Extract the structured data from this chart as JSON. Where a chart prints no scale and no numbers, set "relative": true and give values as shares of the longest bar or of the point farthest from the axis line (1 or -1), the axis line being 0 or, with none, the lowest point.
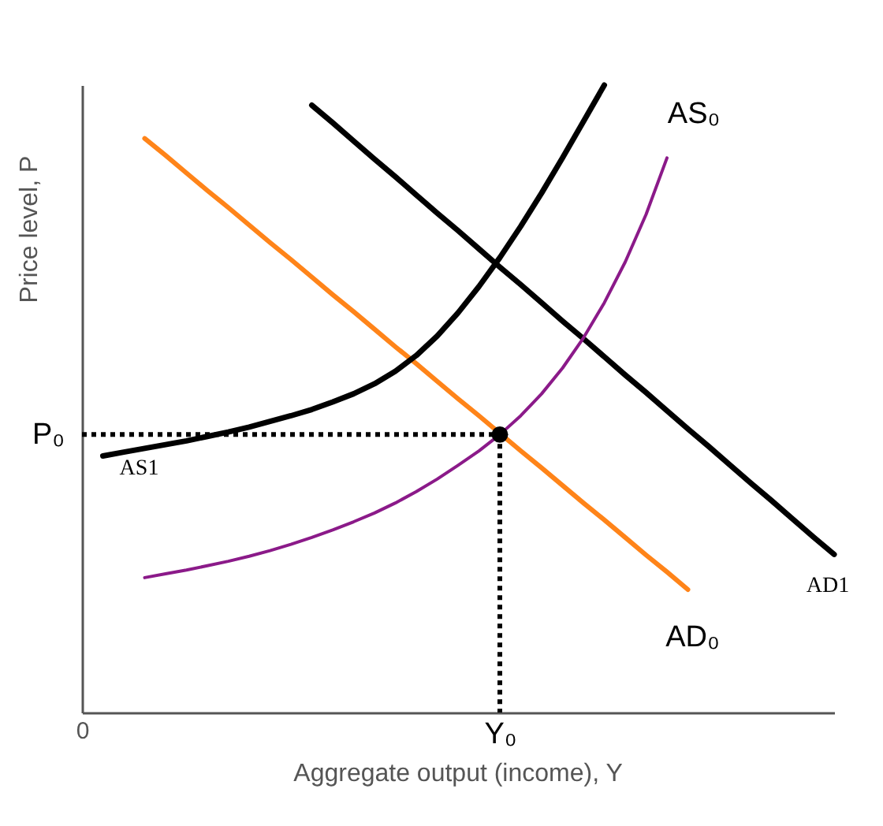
{
  "chart_data": {
    "type": "line",
    "relative": true,
    "xlabel": "Aggregate output (income), Y",
    "ylabel": "Price level, P",
    "grid": false,
    "categories": [
      "0",
      null,
      null,
      null,
      null,
      null,
      null,
      null,
      null,
      null,
      null,
      null,
      null,
      null,
      null,
      null,
      null,
      null,
      null,
      null,
      "Y₀",
      null,
      null,
      null,
      null,
      null,
      null,
      null,
      null,
      null,
      null,
      null,
      null,
      null,
      null,
      null,
      null
    ],
    "annotations": [
      "P₀"
    ],
    "series": [
      {
        "name": "AD₀",
        "color": "#ff8419",
        "values": [
          null,
          null,
          null,
          0.915,
          0.888,
          0.86,
          0.832,
          0.805,
          0.777,
          0.749,
          0.722,
          0.694,
          0.666,
          0.639,
          0.611,
          0.583,
          0.556,
          0.528,
          0.5,
          0.473,
          0.445,
          0.417,
          0.39,
          0.362,
          0.334,
          0.307,
          0.279,
          0.251,
          0.224,
          0.196,
          null,
          null,
          null,
          null,
          null,
          null,
          null
        ]
      },
      {
        "name": "AD1",
        "color": "#000000",
        "values": [
          null,
          null,
          null,
          null,
          null,
          null,
          null,
          null,
          null,
          null,
          null,
          0.968,
          0.94,
          0.911,
          0.882,
          0.854,
          0.825,
          0.796,
          0.768,
          0.739,
          0.71,
          0.682,
          0.653,
          0.624,
          0.596,
          0.567,
          0.538,
          0.51,
          0.481,
          0.452,
          0.424,
          0.395,
          0.366,
          0.338,
          0.309,
          0.28,
          0.252
        ]
      },
      {
        "name": "AS₀",
        "color": "#8b1a89",
        "values": [
          null,
          null,
          null,
          0.215,
          0.221,
          0.227,
          0.234,
          0.241,
          0.249,
          0.258,
          0.268,
          0.279,
          0.291,
          0.304,
          0.318,
          0.334,
          0.352,
          0.372,
          0.394,
          0.417,
          0.443,
          0.473,
          0.508,
          0.549,
          0.597,
          0.653,
          0.718,
          0.794,
          0.884,
          null,
          null,
          null,
          null,
          null,
          null,
          null,
          null
        ]
      },
      {
        "name": "AS1",
        "color": "#000000",
        "values": [
          null,
          0.409,
          0.415,
          0.421,
          0.427,
          0.433,
          0.44,
          0.447,
          0.455,
          0.464,
          0.473,
          0.483,
          0.495,
          0.508,
          0.524,
          0.544,
          0.569,
          0.6,
          0.637,
          0.679,
          0.725,
          0.775,
          0.828,
          0.884,
          0.942,
          1.0,
          null,
          null,
          null,
          null,
          null,
          null,
          null,
          null,
          null,
          null,
          null
        ]
      },
      {
        "color": "#000000",
        "line_style": "dotted",
        "values": [
          0.443,
          0.443,
          0.443,
          0.443,
          0.443,
          0.443,
          0.443,
          0.443,
          0.443,
          0.443,
          0.443,
          0.443,
          0.443,
          0.443,
          0.443,
          0.443,
          0.443,
          0.443,
          0.443,
          0.443,
          0.443,
          null,
          null,
          null,
          null,
          null,
          null,
          null,
          null,
          null,
          null,
          null,
          null,
          null,
          null,
          null,
          null
        ]
      },
      {
        "type": "lollipop",
        "color": "#000000",
        "line_style": "dotted",
        "marker": "circle",
        "values": [
          null,
          null,
          null,
          null,
          null,
          null,
          null,
          null,
          null,
          null,
          null,
          null,
          null,
          null,
          null,
          null,
          null,
          null,
          null,
          null,
          0.443,
          null,
          null,
          null,
          null,
          null,
          null,
          null,
          null,
          null,
          null,
          null,
          null,
          null,
          null,
          null,
          null
        ]
      }
    ]
  }
}
